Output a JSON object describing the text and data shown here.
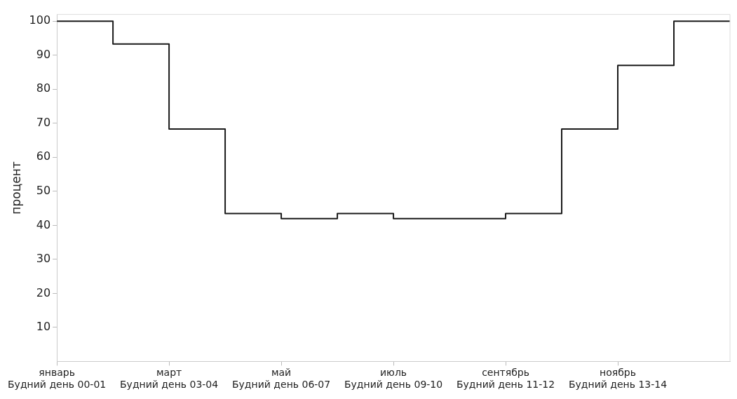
{
  "chart_data": {
    "type": "step",
    "ylabel": "процент",
    "categories": [
      "январь\nБудний день 00-01",
      null,
      "март\nБудний день 03-04",
      null,
      "май\nБудний день 06-07",
      null,
      "июль\nБудний день 09-10",
      null,
      "сентябрь\nБудний день 11-12",
      null,
      "ноябрь\nБудний день 13-14",
      null,
      null
    ],
    "values": [
      100,
      93.3,
      68.3,
      43.5,
      42,
      43.5,
      42,
      42,
      43.5,
      68.3,
      87,
      100,
      100
    ],
    "color": "#1a1a1a",
    "ylim": [
      0,
      102
    ],
    "yticks": [
      10,
      20,
      30,
      40,
      50,
      60,
      70,
      80,
      90,
      100
    ],
    "grid": false,
    "legend": false
  }
}
